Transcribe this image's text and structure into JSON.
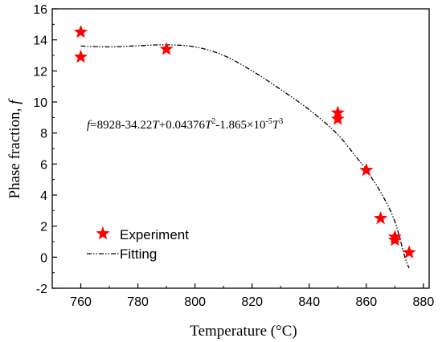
{
  "chart_data": {
    "type": "scatter",
    "xlabel": "Temperature  (°C)",
    "ylabel_prefix": "Phase fraction, ",
    "ylabel_var": "f",
    "xlim": [
      750,
      882
    ],
    "ylim": [
      -2,
      16
    ],
    "xticks": [
      760,
      780,
      800,
      820,
      840,
      860,
      880
    ],
    "yticks": [
      -2,
      0,
      2,
      4,
      6,
      8,
      10,
      12,
      14,
      16
    ],
    "grid": false,
    "legend_position": "bottom-left",
    "series": [
      {
        "name": "Experiment",
        "kind": "scatter",
        "marker": "star",
        "color": "#ff0000",
        "points": [
          {
            "x": 760,
            "y": 14.5
          },
          {
            "x": 760,
            "y": 12.9
          },
          {
            "x": 790,
            "y": 13.4
          },
          {
            "x": 850,
            "y": 9.3
          },
          {
            "x": 850,
            "y": 8.9
          },
          {
            "x": 860,
            "y": 5.6
          },
          {
            "x": 865,
            "y": 2.5
          },
          {
            "x": 870,
            "y": 1.3
          },
          {
            "x": 870,
            "y": 1.1
          },
          {
            "x": 875,
            "y": 0.3
          }
        ]
      },
      {
        "name": "Fitting",
        "kind": "line",
        "style": "dash-dot-dot",
        "color": "#000000",
        "x_range": [
          760,
          875
        ],
        "equation": {
          "lhs": "f",
          "c0": "8928",
          "c1": "34.22",
          "c2": "0.04376",
          "c3_mantissa": "1.865",
          "c3_exp": "-5",
          "var": "T",
          "values": {
            "c0": 8928,
            "c1": -34.22,
            "c2": 0.04376,
            "c3": -1.865e-05
          }
        }
      }
    ]
  }
}
